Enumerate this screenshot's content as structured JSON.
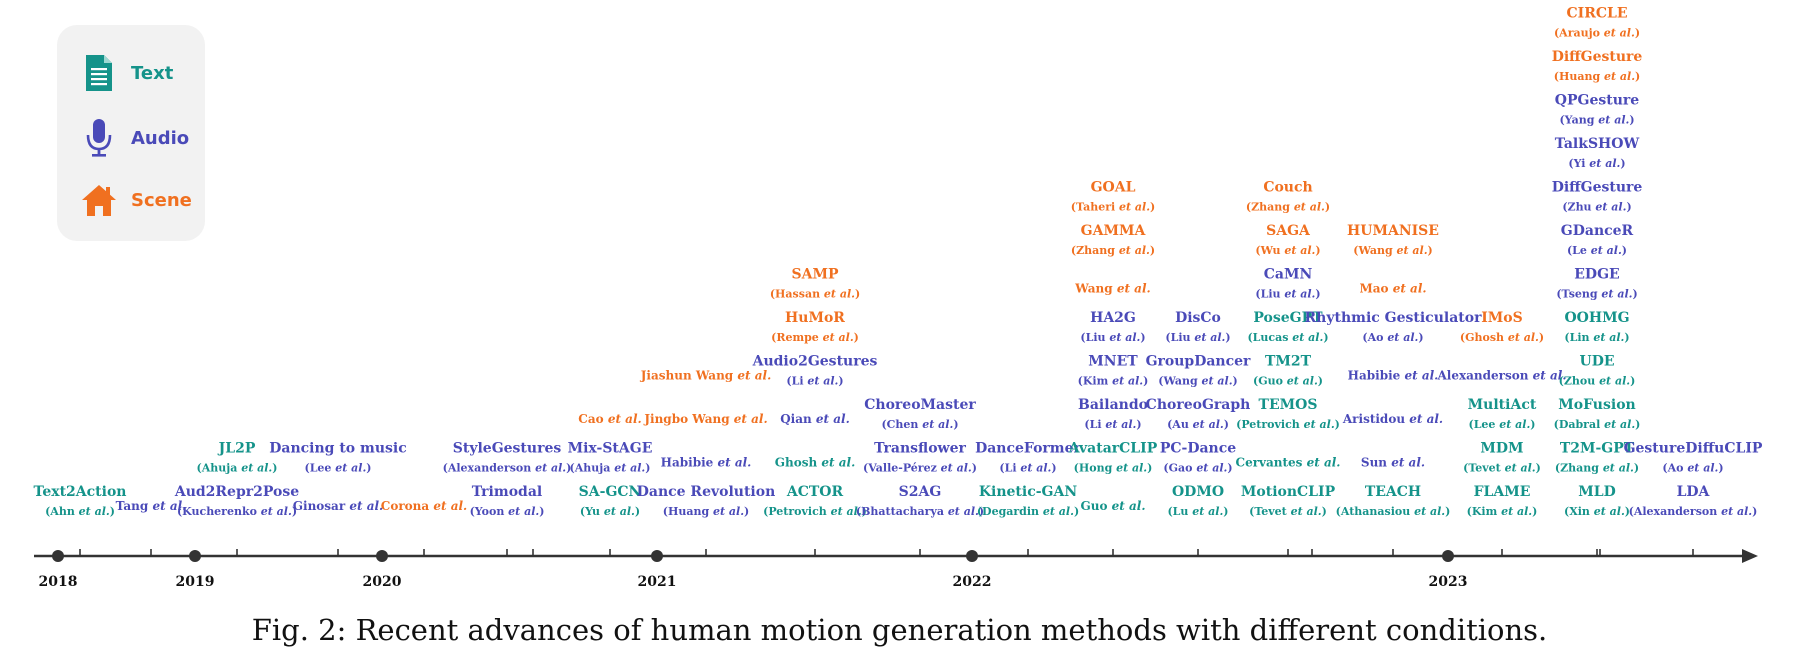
{
  "colors": {
    "text": "#15938a",
    "audio": "#4a4ab8",
    "scene": "#f07020",
    "axis": "#333333"
  },
  "legend": [
    {
      "condition": "text",
      "label": "Text",
      "icon": "document-icon"
    },
    {
      "condition": "audio",
      "label": "Audio",
      "icon": "microphone-icon"
    },
    {
      "condition": "scene",
      "label": "Scene",
      "icon": "house-icon"
    }
  ],
  "timeline": {
    "years": [
      "2018",
      "2019",
      "2020",
      "2021",
      "2022",
      "2023"
    ],
    "columns": [
      {
        "items": [
          {
            "title": "Text2Action",
            "author": "Ahn",
            "c": "text"
          }
        ]
      },
      {
        "items": [
          {
            "title": "",
            "author": "Tang",
            "c": "audio"
          }
        ]
      },
      {
        "items": [
          {
            "title": "Aud2Repr2Pose",
            "author": "Kucherenko",
            "c": "audio"
          },
          {
            "title": "JL2P",
            "author": "Ahuja",
            "c": "text"
          }
        ]
      },
      {
        "items": [
          {
            "title": "",
            "author": "Ginosar",
            "c": "audio"
          },
          {
            "title": "Dancing to music",
            "author": "Lee",
            "c": "audio"
          }
        ]
      },
      {
        "items": [
          {
            "title": "",
            "author": "Corona",
            "c": "scene"
          }
        ]
      },
      {
        "items": [
          {
            "title": "Trimodal",
            "author": "Yoon",
            "c": "audio"
          },
          {
            "title": "StyleGestures",
            "author": "Alexanderson",
            "c": "audio"
          }
        ]
      },
      {
        "items": [
          {
            "title": "SA-GCN",
            "author": "Yu",
            "c": "text"
          },
          {
            "title": "Mix-StAGE",
            "author": "Ahuja",
            "c": "audio"
          },
          {
            "title": "",
            "author": "Cao",
            "c": "scene"
          }
        ]
      },
      {
        "items": [
          {
            "title": "Dance Revolution",
            "author": "Huang",
            "c": "audio"
          },
          {
            "title": "",
            "author": "Habibie",
            "c": "audio"
          },
          {
            "title": "",
            "author": "Jingbo Wang",
            "c": "scene"
          },
          {
            "title": "",
            "author": "Jiashun Wang",
            "c": "scene"
          }
        ]
      },
      {
        "items": [
          {
            "title": "ACTOR",
            "author": "Petrovich",
            "c": "text"
          },
          {
            "title": "",
            "author": "Ghosh",
            "c": "text"
          },
          {
            "title": "",
            "author": "Qian",
            "c": "audio"
          },
          {
            "title": "Audio2Gestures",
            "author": "Li",
            "c": "audio"
          },
          {
            "title": "HuMoR",
            "author": "Rempe",
            "c": "scene"
          },
          {
            "title": "SAMP",
            "author": "Hassan",
            "c": "scene"
          }
        ]
      },
      {
        "items": [
          {
            "title": "S2AG",
            "author": "Bhattacharya",
            "c": "audio"
          },
          {
            "title": "Transflower",
            "author": "Valle-Pérez",
            "c": "audio"
          },
          {
            "title": "ChoreoMaster",
            "author": "Chen",
            "c": "audio"
          }
        ]
      },
      {
        "items": [
          {
            "title": "Kinetic-GAN",
            "author": "Degardin",
            "c": "text"
          },
          {
            "title": "DanceFormer",
            "author": "Li",
            "c": "audio"
          }
        ]
      },
      {
        "items": [
          {
            "title": "",
            "author": "Guo",
            "c": "text"
          },
          {
            "title": "AvatarCLIP",
            "author": "Hong",
            "c": "text"
          },
          {
            "title": "Bailando",
            "author": "Li",
            "c": "audio"
          },
          {
            "title": "MNET",
            "author": "Kim",
            "c": "audio"
          },
          {
            "title": "HA2G",
            "author": "Liu",
            "c": "audio"
          },
          {
            "title": "",
            "author": "Wang",
            "c": "scene"
          },
          {
            "title": "GAMMA",
            "author": "Zhang",
            "c": "scene"
          },
          {
            "title": "GOAL",
            "author": "Taheri",
            "c": "scene"
          }
        ]
      },
      {
        "items": [
          {
            "title": "ODMO",
            "author": "Lu",
            "c": "text"
          },
          {
            "title": "PC-Dance",
            "author": "Gao",
            "c": "audio"
          },
          {
            "title": "ChoreoGraph",
            "author": "Au",
            "c": "audio"
          },
          {
            "title": "GroupDancer",
            "author": "Wang",
            "c": "audio"
          },
          {
            "title": "DisCo",
            "author": "Liu",
            "c": "audio"
          }
        ]
      },
      {
        "items": [
          {
            "title": "MotionCLIP",
            "author": "Tevet",
            "c": "text"
          },
          {
            "title": "",
            "author": "Cervantes",
            "c": "text"
          },
          {
            "title": "TEMOS",
            "author": "Petrovich",
            "c": "text"
          },
          {
            "title": "TM2T",
            "author": "Guo",
            "c": "text"
          },
          {
            "title": "PoseGPT",
            "author": "Lucas",
            "c": "text"
          },
          {
            "title": "CaMN",
            "author": "Liu",
            "c": "audio"
          },
          {
            "title": "SAGA",
            "author": "Wu",
            "c": "scene"
          },
          {
            "title": "Couch",
            "author": "Zhang",
            "c": "scene"
          }
        ]
      },
      {
        "items": [
          {
            "title": "TEACH",
            "author": "Athanasiou",
            "c": "text"
          },
          {
            "title": "",
            "author": "Sun",
            "c": "audio"
          },
          {
            "title": "",
            "author": "Aristidou",
            "c": "audio"
          },
          {
            "title": "",
            "author": "Habibie",
            "c": "audio"
          },
          {
            "title": "Rhythmic Gesticulator",
            "author": "Ao",
            "c": "audio"
          },
          {
            "title": "",
            "author": "Mao",
            "c": "scene"
          },
          {
            "title": "HUMANISE",
            "author": "Wang",
            "c": "scene"
          }
        ]
      },
      {
        "items": [
          {
            "title": "FLAME",
            "author": "Kim",
            "c": "text"
          },
          {
            "title": "MDM",
            "author": "Tevet",
            "c": "text"
          },
          {
            "title": "MultiAct",
            "author": "Lee",
            "c": "text"
          },
          {
            "title": "",
            "author": "Alexanderson",
            "c": "audio"
          },
          {
            "title": "IMoS",
            "author": "Ghosh",
            "c": "scene"
          }
        ]
      },
      {
        "items": [
          {
            "title": "MLD",
            "author": "Xin",
            "c": "text"
          },
          {
            "title": "T2M-GPT",
            "author": "Zhang",
            "c": "text"
          },
          {
            "title": "MoFusion",
            "author": "Dabral",
            "c": "text"
          },
          {
            "title": "UDE",
            "author": "Zhou",
            "c": "text"
          },
          {
            "title": "OOHMG",
            "author": "Lin",
            "c": "text"
          },
          {
            "title": "EDGE",
            "author": "Tseng",
            "c": "audio"
          },
          {
            "title": "GDanceR",
            "author": "Le",
            "c": "audio"
          },
          {
            "title": "DiffGesture",
            "author": "Zhu",
            "c": "audio"
          },
          {
            "title": "TalkSHOW",
            "author": "Yi",
            "c": "audio"
          },
          {
            "title": "QPGesture",
            "author": "Yang",
            "c": "audio"
          },
          {
            "title": "DiffGesture",
            "author": "Huang",
            "c": "scene"
          },
          {
            "title": "CIRCLE",
            "author": "Araujo",
            "c": "scene"
          }
        ]
      },
      {
        "items": [
          {
            "title": "LDA",
            "author": "Alexanderson",
            "c": "audio"
          },
          {
            "title": "GestureDiffuCLIP",
            "author": "Ao",
            "c": "audio"
          }
        ]
      }
    ]
  },
  "caption": "Fig. 2: Recent advances of human motion generation methods with different conditions."
}
